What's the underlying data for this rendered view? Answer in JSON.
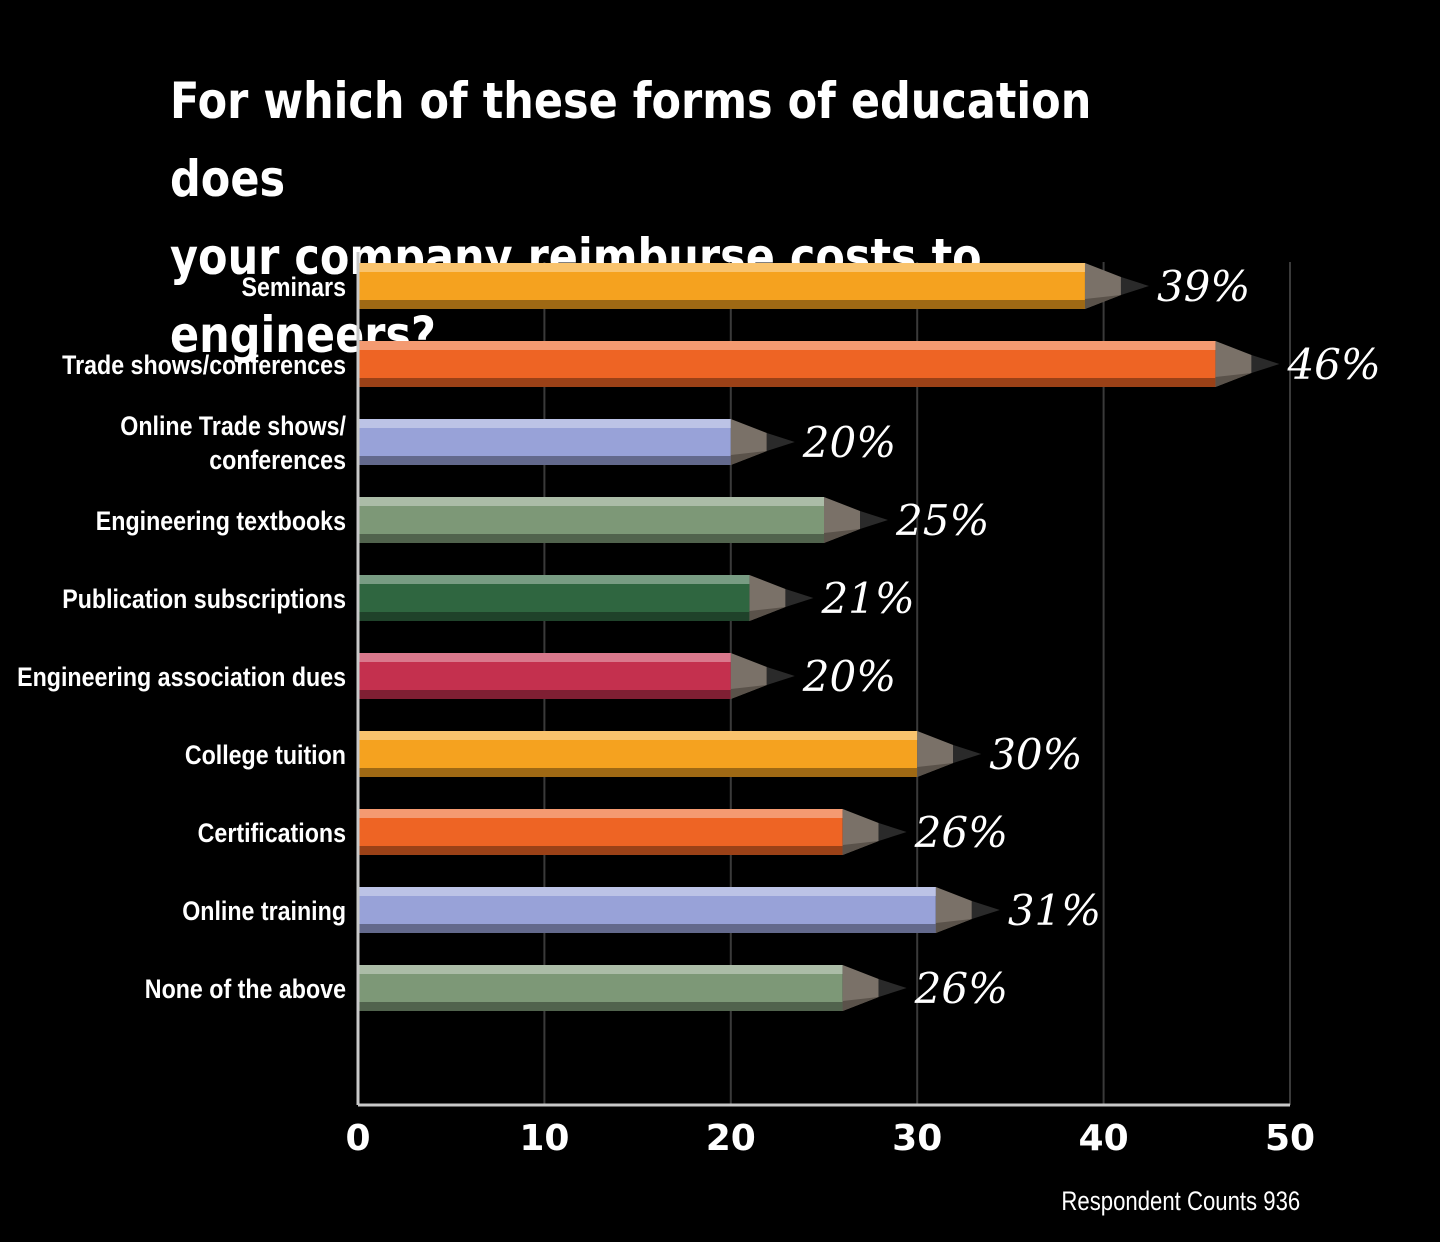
{
  "chart_data": {
    "type": "bar",
    "orientation": "horizontal",
    "title_lines": [
      "For which of these forms of education does",
      "your company reimburse costs to engineers?"
    ],
    "categories": [
      [
        "Seminars"
      ],
      [
        "Trade shows/conferences"
      ],
      [
        "Online Trade shows/",
        "conferences"
      ],
      [
        "Engineering textbooks"
      ],
      [
        "Publication subscriptions"
      ],
      [
        "Engineering association dues"
      ],
      [
        "College tuition"
      ],
      [
        "Certifications"
      ],
      [
        "Online training"
      ],
      [
        "None of the above"
      ]
    ],
    "values": [
      39,
      46,
      20,
      25,
      21,
      20,
      30,
      26,
      31,
      26
    ],
    "value_labels": [
      "39%",
      "46%",
      "20%",
      "25%",
      "21%",
      "20%",
      "30%",
      "26%",
      "31%",
      "26%"
    ],
    "colors": [
      "#f5a21f",
      "#ee6424",
      "#98a2d8",
      "#7d9877",
      "#2f6640",
      "#c4304e",
      "#f5a21f",
      "#ee6424",
      "#98a2d8",
      "#7d9877"
    ],
    "xlim": [
      0,
      50
    ],
    "xticks": [
      0,
      10,
      20,
      30,
      40,
      50
    ],
    "grid": true,
    "legend": "none",
    "footnote": "Respondent Counts 936"
  }
}
